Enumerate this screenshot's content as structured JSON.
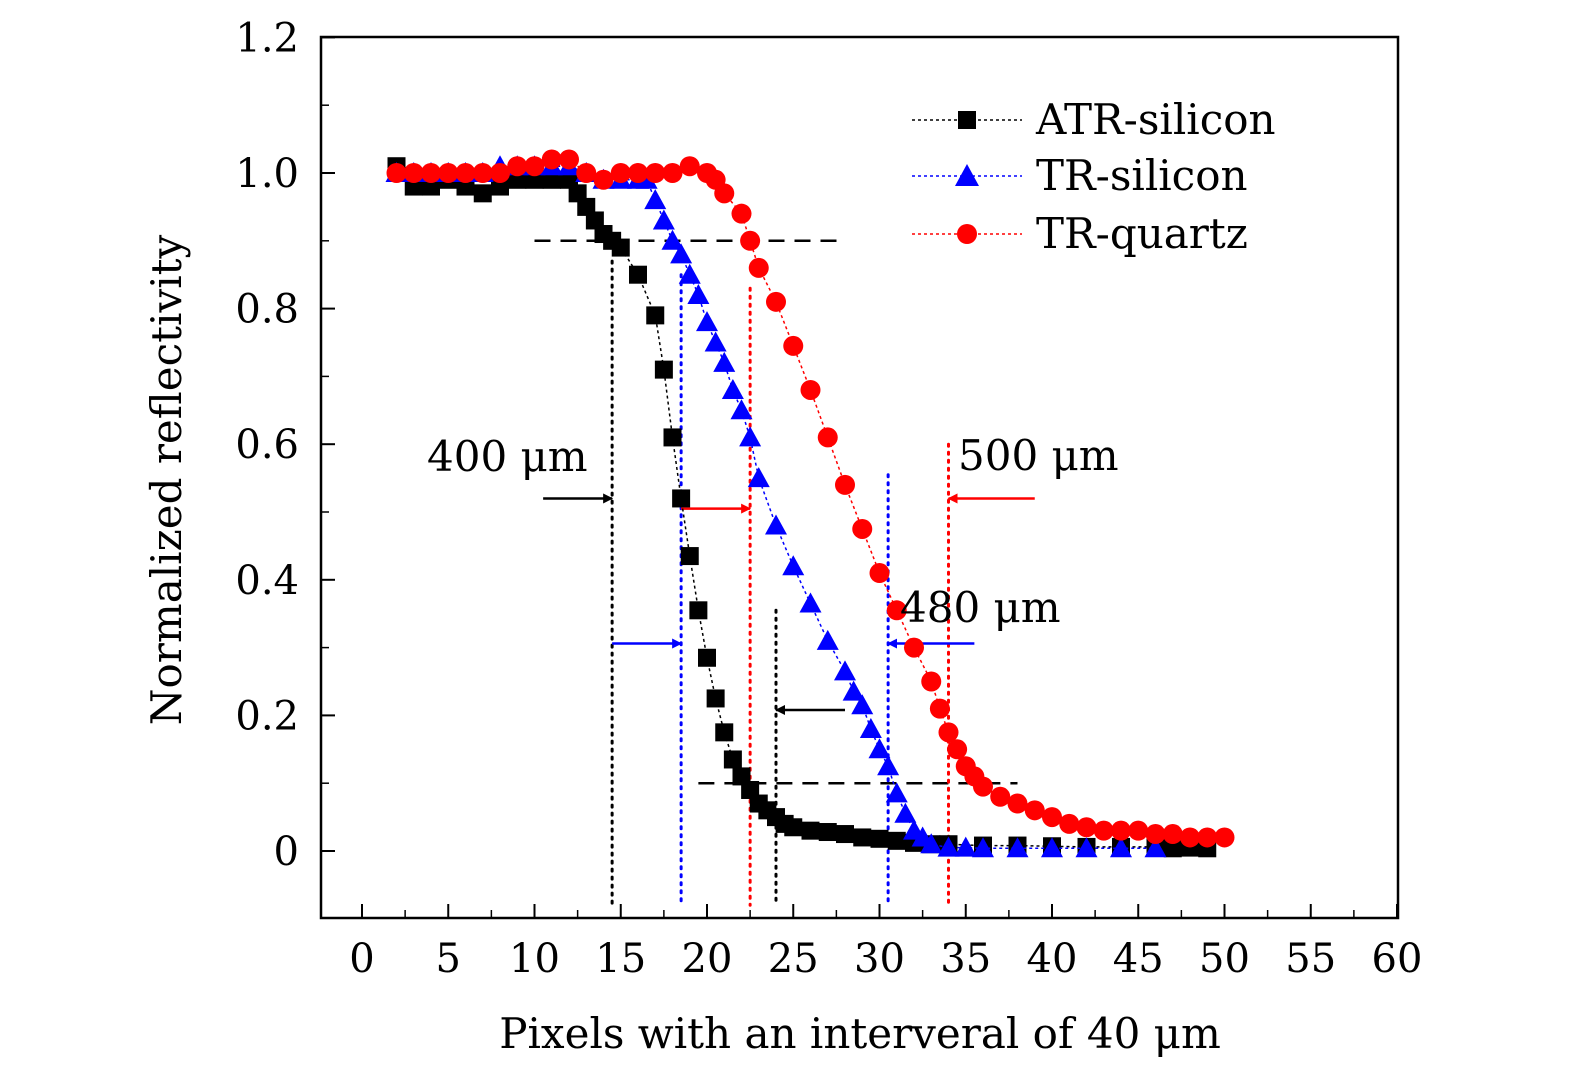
{
  "chart_data": {
    "type": "scatter",
    "title": "",
    "xlabel": "Pixels with an interveral of 40 μm",
    "ylabel": "Normalized reflectivity",
    "xlim": [
      -2,
      60
    ],
    "ylim": [
      -0.1,
      1.2
    ],
    "x_ticks": [
      "0",
      "5",
      "10",
      "15",
      "20",
      "25",
      "30",
      "35",
      "40",
      "45",
      "50",
      "55",
      "60"
    ],
    "y_ticks": [
      "0",
      "0.2",
      "0.4",
      "0.6",
      "0.8",
      "1.0",
      "1.2"
    ],
    "grid": false,
    "legend_position": "top-right",
    "series": [
      {
        "name": "ATR-silicon",
        "marker": "square",
        "color": "#000000",
        "points": [
          [
            2,
            1.01
          ],
          [
            3,
            0.98
          ],
          [
            4,
            0.98
          ],
          [
            5,
            0.99
          ],
          [
            6,
            0.98
          ],
          [
            7,
            0.97
          ],
          [
            8,
            0.98
          ],
          [
            9,
            0.99
          ],
          [
            10,
            0.99
          ],
          [
            11,
            0.99
          ],
          [
            12,
            0.99
          ],
          [
            12.5,
            0.97
          ],
          [
            13,
            0.95
          ],
          [
            13.5,
            0.93
          ],
          [
            14,
            0.91
          ],
          [
            14.5,
            0.9
          ],
          [
            15,
            0.89
          ],
          [
            16,
            0.85
          ],
          [
            17,
            0.79
          ],
          [
            17.5,
            0.71
          ],
          [
            18,
            0.61
          ],
          [
            18.5,
            0.52
          ],
          [
            19,
            0.435
          ],
          [
            19.5,
            0.355
          ],
          [
            20,
            0.285
          ],
          [
            20.5,
            0.225
          ],
          [
            21,
            0.175
          ],
          [
            21.5,
            0.135
          ],
          [
            22,
            0.11
          ],
          [
            22.5,
            0.09
          ],
          [
            23,
            0.07
          ],
          [
            23.5,
            0.06
          ],
          [
            24,
            0.05
          ],
          [
            24.5,
            0.04
          ],
          [
            25,
            0.035
          ],
          [
            26,
            0.03
          ],
          [
            27,
            0.028
          ],
          [
            28,
            0.025
          ],
          [
            29,
            0.02
          ],
          [
            30,
            0.018
          ],
          [
            31,
            0.015
          ],
          [
            32,
            0.012
          ],
          [
            33,
            0.01
          ],
          [
            34,
            0.01
          ],
          [
            36,
            0.008
          ],
          [
            38,
            0.008
          ],
          [
            40,
            0.007
          ],
          [
            42,
            0.006
          ],
          [
            44,
            0.006
          ],
          [
            46,
            0.006
          ],
          [
            47,
            0.004
          ],
          [
            48,
            0.005
          ],
          [
            49,
            0.004
          ]
        ]
      },
      {
        "name": "TR-silicon",
        "marker": "triangle",
        "color": "#0000ff",
        "points": [
          [
            2,
            1.0
          ],
          [
            3,
            1.0
          ],
          [
            4,
            1.0
          ],
          [
            5,
            1.0
          ],
          [
            6,
            1.0
          ],
          [
            7,
            1.0
          ],
          [
            8,
            1.01
          ],
          [
            9,
            1.01
          ],
          [
            10,
            1.01
          ],
          [
            11,
            1.01
          ],
          [
            12,
            1.01
          ],
          [
            13,
            1.0
          ],
          [
            14,
            0.99
          ],
          [
            15,
            0.99
          ],
          [
            16,
            0.99
          ],
          [
            16.5,
            0.99
          ],
          [
            17,
            0.96
          ],
          [
            17.5,
            0.93
          ],
          [
            18,
            0.9
          ],
          [
            18.5,
            0.88
          ],
          [
            19,
            0.85
          ],
          [
            19.5,
            0.82
          ],
          [
            20,
            0.78
          ],
          [
            20.5,
            0.75
          ],
          [
            21,
            0.72
          ],
          [
            21.5,
            0.68
          ],
          [
            22,
            0.65
          ],
          [
            22.5,
            0.61
          ],
          [
            23,
            0.55
          ],
          [
            24,
            0.48
          ],
          [
            25,
            0.42
          ],
          [
            26,
            0.365
          ],
          [
            27,
            0.31
          ],
          [
            28,
            0.265
          ],
          [
            28.5,
            0.235
          ],
          [
            29,
            0.215
          ],
          [
            29.5,
            0.18
          ],
          [
            30,
            0.15
          ],
          [
            30.5,
            0.125
          ],
          [
            31,
            0.085
          ],
          [
            31.5,
            0.055
          ],
          [
            32,
            0.03
          ],
          [
            32.5,
            0.02
          ],
          [
            33,
            0.01
          ],
          [
            34,
            0.005
          ],
          [
            35,
            0.005
          ],
          [
            36,
            0.004
          ],
          [
            38,
            0.004
          ],
          [
            40,
            0.004
          ],
          [
            42,
            0.004
          ],
          [
            44,
            0.004
          ],
          [
            46,
            0.004
          ]
        ]
      },
      {
        "name": "TR-quartz",
        "marker": "circle",
        "color": "#ff0000",
        "points": [
          [
            2,
            1.0
          ],
          [
            3,
            1.0
          ],
          [
            4,
            1.0
          ],
          [
            5,
            1.0
          ],
          [
            6,
            1.0
          ],
          [
            7,
            1.0
          ],
          [
            8,
            1.0
          ],
          [
            9,
            1.01
          ],
          [
            10,
            1.01
          ],
          [
            11,
            1.02
          ],
          [
            12,
            1.02
          ],
          [
            13,
            1.0
          ],
          [
            14,
            0.99
          ],
          [
            15,
            1.0
          ],
          [
            16,
            1.0
          ],
          [
            17,
            1.0
          ],
          [
            18,
            1.0
          ],
          [
            19,
            1.01
          ],
          [
            20,
            1.0
          ],
          [
            20.5,
            0.99
          ],
          [
            21,
            0.97
          ],
          [
            22,
            0.94
          ],
          [
            22.5,
            0.9
          ],
          [
            23,
            0.86
          ],
          [
            24,
            0.81
          ],
          [
            25,
            0.745
          ],
          [
            26,
            0.68
          ],
          [
            27,
            0.61
          ],
          [
            28,
            0.54
          ],
          [
            29,
            0.475
          ],
          [
            30,
            0.41
          ],
          [
            31,
            0.355
          ],
          [
            32,
            0.3
          ],
          [
            33,
            0.25
          ],
          [
            33.5,
            0.21
          ],
          [
            34,
            0.175
          ],
          [
            34.5,
            0.15
          ],
          [
            35,
            0.125
          ],
          [
            35.5,
            0.11
          ],
          [
            36,
            0.095
          ],
          [
            37,
            0.08
          ],
          [
            38,
            0.07
          ],
          [
            39,
            0.06
          ],
          [
            40,
            0.05
          ],
          [
            41,
            0.04
          ],
          [
            42,
            0.035
          ],
          [
            43,
            0.03
          ],
          [
            44,
            0.03
          ],
          [
            45,
            0.03
          ],
          [
            46,
            0.025
          ],
          [
            47,
            0.025
          ],
          [
            48,
            0.02
          ],
          [
            49,
            0.02
          ],
          [
            50,
            0.02
          ]
        ]
      }
    ],
    "annotations": [
      {
        "text": "400 μm",
        "x": 13.5,
        "y": 0.57
      },
      {
        "text": "480 μm",
        "x": 36,
        "y": 0.355
      },
      {
        "text": "500 μm",
        "x": 39.5,
        "y": 0.575
      }
    ],
    "reference_lines": {
      "horizontal_dashed": [
        {
          "y": 0.9,
          "x_from": 10,
          "x_to": 28,
          "color": "#000000"
        },
        {
          "y": 0.1,
          "x_from": 19.5,
          "x_to": 38,
          "color": "#000000"
        }
      ],
      "vertical_dotted": [
        {
          "x": 14.5,
          "y_from": -0.08,
          "y_to": 0.87,
          "color": "#000000"
        },
        {
          "x": 18.5,
          "y_from": -0.08,
          "y_to": 0.85,
          "color": "#0000ff"
        },
        {
          "x": 22.5,
          "y_from": -0.08,
          "y_to": 0.83,
          "color": "#ff0000"
        },
        {
          "x": 24,
          "y_from": -0.08,
          "y_to": 0.355,
          "color": "#000000"
        },
        {
          "x": 30.5,
          "y_from": -0.08,
          "y_to": 0.555,
          "color": "#0000ff"
        },
        {
          "x": 34,
          "y_from": -0.08,
          "y_to": 0.6,
          "color": "#ff0000"
        }
      ],
      "arrows": [
        {
          "from": [
            10.5,
            0.52
          ],
          "to": [
            14.5,
            0.52
          ],
          "color": "#000000"
        },
        {
          "from": [
            18.5,
            0.505
          ],
          "to": [
            22.5,
            0.505
          ],
          "color": "#ff0000"
        },
        {
          "from": [
            14.5,
            0.306
          ],
          "to": [
            18.5,
            0.306
          ],
          "color": "#0000ff"
        },
        {
          "from": [
            28,
            0.208
          ],
          "to": [
            24,
            0.208
          ],
          "color": "#000000"
        },
        {
          "from": [
            35.5,
            0.306
          ],
          "to": [
            30.5,
            0.306
          ],
          "color": "#0000ff"
        },
        {
          "from": [
            39,
            0.52
          ],
          "to": [
            34,
            0.52
          ],
          "color": "#ff0000"
        }
      ]
    }
  }
}
